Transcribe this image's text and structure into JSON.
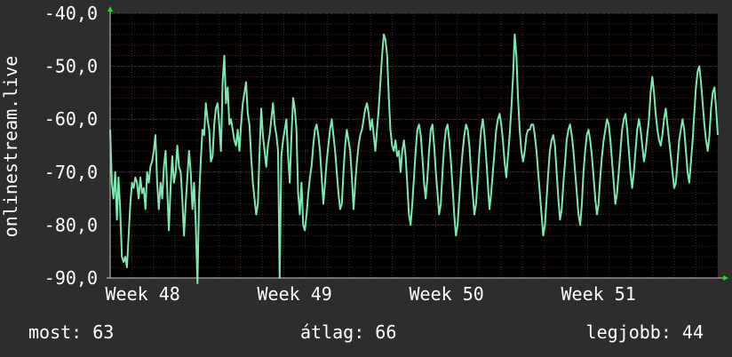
{
  "chart_data": {
    "type": "line",
    "ylabel": "onlinestream.live",
    "ylim": [
      -90,
      -40
    ],
    "y_ticks": [
      "-40,0",
      "-50,0",
      "-60,0",
      "-70,0",
      "-80,0",
      "-90,0"
    ],
    "y_tick_values": [
      -40,
      -50,
      -60,
      -70,
      -80,
      -90
    ],
    "x_ticks": [
      "Week 48",
      "Week 49",
      "Week 50",
      "Week 51"
    ],
    "x_tick_positions": [
      1,
      8,
      15,
      22
    ],
    "x_range": [
      -0.5,
      27.5
    ],
    "grid": true,
    "colors": {
      "background": "#2d2d2d",
      "plot_background": "#000000",
      "line": "#7ee8b0",
      "minor_grid": "#4a2a2a",
      "major_grid": "#3c3c3c",
      "axis": "#cccccc",
      "arrow": "#1fe01f"
    },
    "series": [
      {
        "values": [
          -62,
          -72,
          -75,
          -70,
          -79,
          -71,
          -77,
          -86,
          -87,
          -86,
          -88,
          -82,
          -76,
          -72,
          -73,
          -71,
          -72,
          -75,
          -71,
          -74,
          -73,
          -77,
          -70,
          -72,
          -69,
          -68,
          -66,
          -63,
          -72,
          -77,
          -72,
          -75,
          -69,
          -66,
          -73,
          -81,
          -73,
          -67,
          -72,
          -70,
          -65,
          -69,
          -70,
          -75,
          -82,
          -76,
          -71,
          -66,
          -70,
          -77,
          -72,
          -80,
          -91,
          -75,
          -68,
          -62,
          -63,
          -57,
          -60,
          -62,
          -68,
          -67,
          -61,
          -58,
          -57,
          -61,
          -66,
          -53,
          -48,
          -57,
          -54,
          -61,
          -60,
          -62,
          -64,
          -65,
          -62,
          -66,
          -61,
          -57,
          -55,
          -53,
          -59,
          -61,
          -67,
          -72,
          -75,
          -78,
          -76,
          -66,
          -58,
          -63,
          -66,
          -69,
          -65,
          -63,
          -60,
          -57,
          -61,
          -63,
          -66,
          -90,
          -67,
          -64,
          -62,
          -60,
          -67,
          -72,
          -63,
          -56,
          -58,
          -62,
          -74,
          -78,
          -72,
          -80,
          -81,
          -78,
          -74,
          -71,
          -69,
          -65,
          -62,
          -61,
          -63,
          -66,
          -71,
          -76,
          -72,
          -68,
          -65,
          -62,
          -60,
          -63,
          -66,
          -70,
          -74,
          -77,
          -76,
          -70,
          -65,
          -62,
          -64,
          -66,
          -71,
          -77,
          -72,
          -68,
          -65,
          -63,
          -62,
          -60,
          -58,
          -57,
          -59,
          -62,
          -60,
          -63,
          -66,
          -62,
          -58,
          -53,
          -48,
          -44,
          -45,
          -48,
          -56,
          -62,
          -65,
          -66,
          -64,
          -67,
          -66,
          -70,
          -66,
          -64,
          -67,
          -72,
          -78,
          -80,
          -76,
          -71,
          -66,
          -62,
          -61,
          -63,
          -67,
          -72,
          -75,
          -71,
          -66,
          -62,
          -61,
          -65,
          -70,
          -74,
          -78,
          -76,
          -70,
          -65,
          -62,
          -61,
          -64,
          -68,
          -73,
          -78,
          -82,
          -80,
          -75,
          -70,
          -66,
          -63,
          -61,
          -62,
          -65,
          -70,
          -74,
          -78,
          -76,
          -71,
          -66,
          -62,
          -60,
          -63,
          -67,
          -72,
          -77,
          -74,
          -70,
          -66,
          -62,
          -60,
          -59,
          -61,
          -64,
          -68,
          -71,
          -67,
          -63,
          -58,
          -52,
          -44,
          -48,
          -56,
          -62,
          -66,
          -68,
          -66,
          -63,
          -62,
          -62,
          -61,
          -61,
          -63,
          -66,
          -70,
          -74,
          -78,
          -82,
          -80,
          -75,
          -70,
          -66,
          -64,
          -63,
          -65,
          -70,
          -75,
          -79,
          -77,
          -72,
          -68,
          -64,
          -62,
          -61,
          -63,
          -66,
          -70,
          -74,
          -78,
          -80,
          -76,
          -70,
          -66,
          -63,
          -62,
          -64,
          -67,
          -71,
          -75,
          -78,
          -76,
          -71,
          -67,
          -64,
          -62,
          -60,
          -61,
          -64,
          -68,
          -72,
          -76,
          -74,
          -70,
          -66,
          -62,
          -60,
          -59,
          -62,
          -66,
          -70,
          -73,
          -70,
          -66,
          -62,
          -60,
          -62,
          -65,
          -68,
          -66,
          -63,
          -60,
          -55,
          -52,
          -55,
          -59,
          -62,
          -64,
          -65,
          -63,
          -60,
          -58,
          -61,
          -64,
          -67,
          -70,
          -73,
          -72,
          -68,
          -64,
          -62,
          -60,
          -62,
          -66,
          -70,
          -72,
          -68,
          -64,
          -59,
          -54,
          -51,
          -50,
          -53,
          -57,
          -61,
          -64,
          -66,
          -63,
          -58,
          -55,
          -54,
          -58,
          -63
        ]
      }
    ],
    "stats": {
      "now": "most: 63",
      "avg": "átlag: 66",
      "best": "legjobb: 44"
    }
  }
}
